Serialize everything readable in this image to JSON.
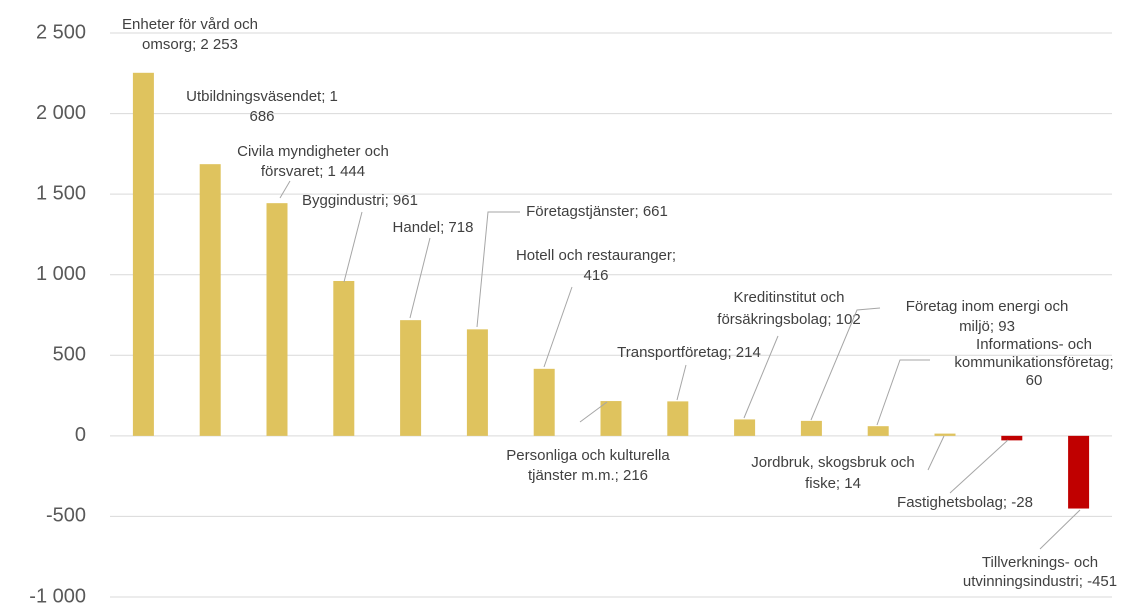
{
  "chart_data": {
    "type": "bar",
    "values": [
      2253,
      1686,
      1444,
      961,
      718,
      661,
      416,
      216,
      214,
      102,
      93,
      60,
      14,
      -28,
      -451
    ],
    "value_labels": [
      [
        "Enheter för vård och",
        "omsorg; 2 253"
      ],
      [
        "Utbildningsväsendet; 1",
        "686"
      ],
      [
        "Civila myndigheter och",
        "försvaret; 1 444"
      ],
      [
        "Byggindustri; 961"
      ],
      [
        "Handel; 718"
      ],
      [
        "Företagstjänster; 661"
      ],
      [
        "Hotell och restauranger;",
        "416"
      ],
      [
        "Personliga och kulturella",
        "tjänster m.m.; 216"
      ],
      [
        "Transportföretag; 214"
      ],
      [
        "Kreditinstitut och",
        "försäkringsbolag; 102"
      ],
      [
        "Företag inom energi och",
        "miljö; 93"
      ],
      [
        "Informations- och",
        "kommunikationsföretag;",
        "60"
      ],
      [
        "Jordbruk, skogsbruk och",
        "fiske; 14"
      ],
      [
        "Fastighetsbolag; -28"
      ],
      [
        "Tillverknings- och",
        "utvinningsindustri; -451"
      ]
    ],
    "color": "#dfc35e",
    "negative_color": "#c00000",
    "ylim": [
      -1000,
      2500
    ],
    "yticks": [
      {
        "value": -1000,
        "label": "-1 000"
      },
      -500,
      0,
      500,
      {
        "value": 1000,
        "label": "1 000"
      },
      {
        "value": 1500,
        "label": "1 500"
      },
      {
        "value": 2000,
        "label": "2 000"
      },
      {
        "value": 2500,
        "label": "2 500"
      }
    ],
    "grid": true
  }
}
